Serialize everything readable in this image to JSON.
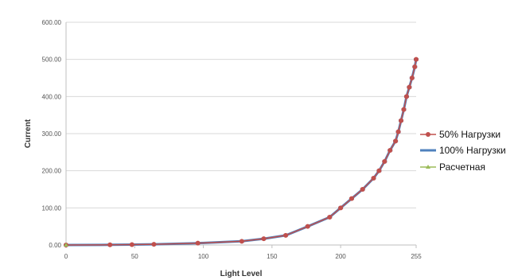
{
  "chart_data": {
    "type": "line",
    "title": "",
    "xlabel": "Light Level",
    "ylabel": "Current",
    "xlim": [
      0,
      255
    ],
    "ylim": [
      0,
      600
    ],
    "xticks": [
      "0",
      "50",
      "100",
      "150",
      "200",
      "255"
    ],
    "yticks": [
      "0.00",
      "100.00",
      "200.00",
      "300.00",
      "400.00",
      "500.00",
      "600.00"
    ],
    "grid": true,
    "legend_position": "right",
    "series": [
      {
        "name": "50% Нагрузки",
        "color": "#c0504d",
        "marker": "circle",
        "x": [
          0,
          32,
          48,
          64,
          96,
          128,
          144,
          160,
          176,
          192,
          200,
          208,
          216,
          224,
          228,
          232,
          236,
          240,
          242,
          244,
          246,
          248,
          250,
          252,
          254,
          255
        ],
        "y": [
          0,
          0.5,
          1,
          2,
          5,
          10,
          17,
          26,
          50,
          75,
          100,
          125,
          150,
          180,
          200,
          225,
          255,
          280,
          305,
          335,
          365,
          400,
          425,
          450,
          480,
          500
        ]
      },
      {
        "name": "100% Нагрузки",
        "color": "#4f81bd",
        "marker": "dash",
        "x": [
          0,
          32,
          48,
          64,
          96,
          128,
          144,
          160,
          176,
          192,
          200,
          208,
          216,
          224,
          228,
          232,
          236,
          240,
          242,
          244,
          246,
          248,
          250,
          252,
          254,
          255
        ],
        "y": [
          0,
          0.5,
          1,
          2,
          5,
          10,
          17,
          26,
          50,
          75,
          100,
          125,
          150,
          180,
          200,
          225,
          255,
          280,
          305,
          335,
          365,
          400,
          425,
          450,
          480,
          500
        ]
      },
      {
        "name": "Расчетная",
        "color": "#9bbb59",
        "marker": "triangle",
        "x": [
          0
        ],
        "y": [
          0
        ]
      }
    ]
  }
}
